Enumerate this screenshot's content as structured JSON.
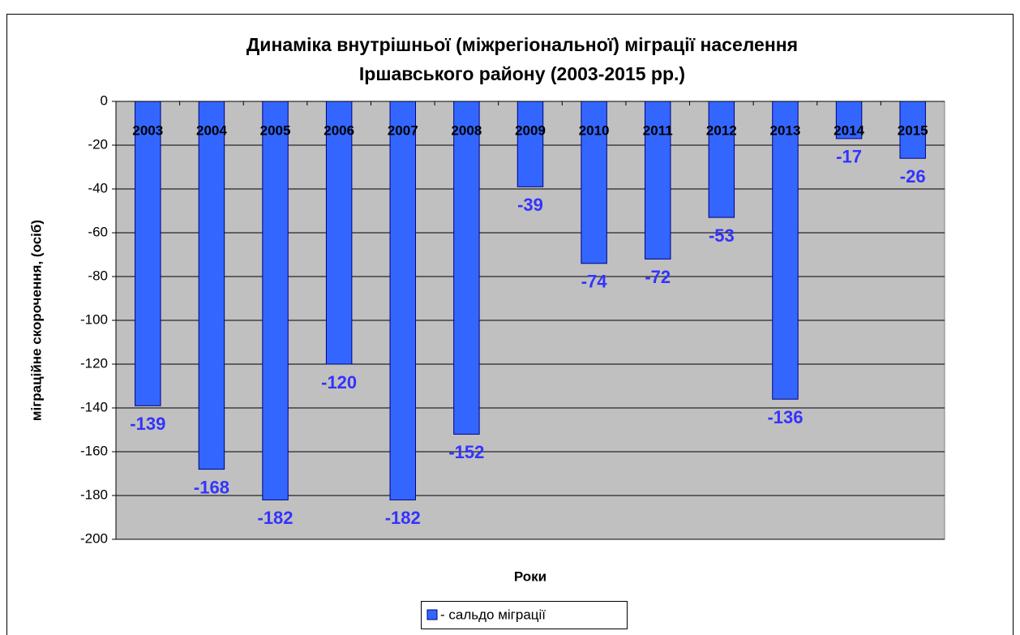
{
  "chart_data": {
    "type": "bar",
    "title": [
      "Динаміка внутрішньої (міжрегіональної) міграції населення",
      "Іршавського району (2003-2015 рр.)"
    ],
    "xlabel": "Роки",
    "ylabel": "міграційне скорочення, (осіб)",
    "categories": [
      "2003",
      "2004",
      "2005",
      "2006",
      "2007",
      "2008",
      "2009",
      "2010",
      "2011",
      "2012",
      "2013",
      "2014",
      "2015"
    ],
    "series": [
      {
        "name": "- сальдо міграції",
        "color": "#3366ff",
        "values": [
          -139,
          -168,
          -182,
          -120,
          -182,
          -152,
          -39,
          -74,
          -72,
          -53,
          -136,
          -17,
          -26
        ]
      }
    ],
    "ylim": [
      -200,
      0
    ],
    "yticks": [
      0,
      -20,
      -40,
      -60,
      -80,
      -100,
      -120,
      -140,
      -160,
      -180,
      -200
    ],
    "grid": true,
    "legend": "bottom"
  }
}
